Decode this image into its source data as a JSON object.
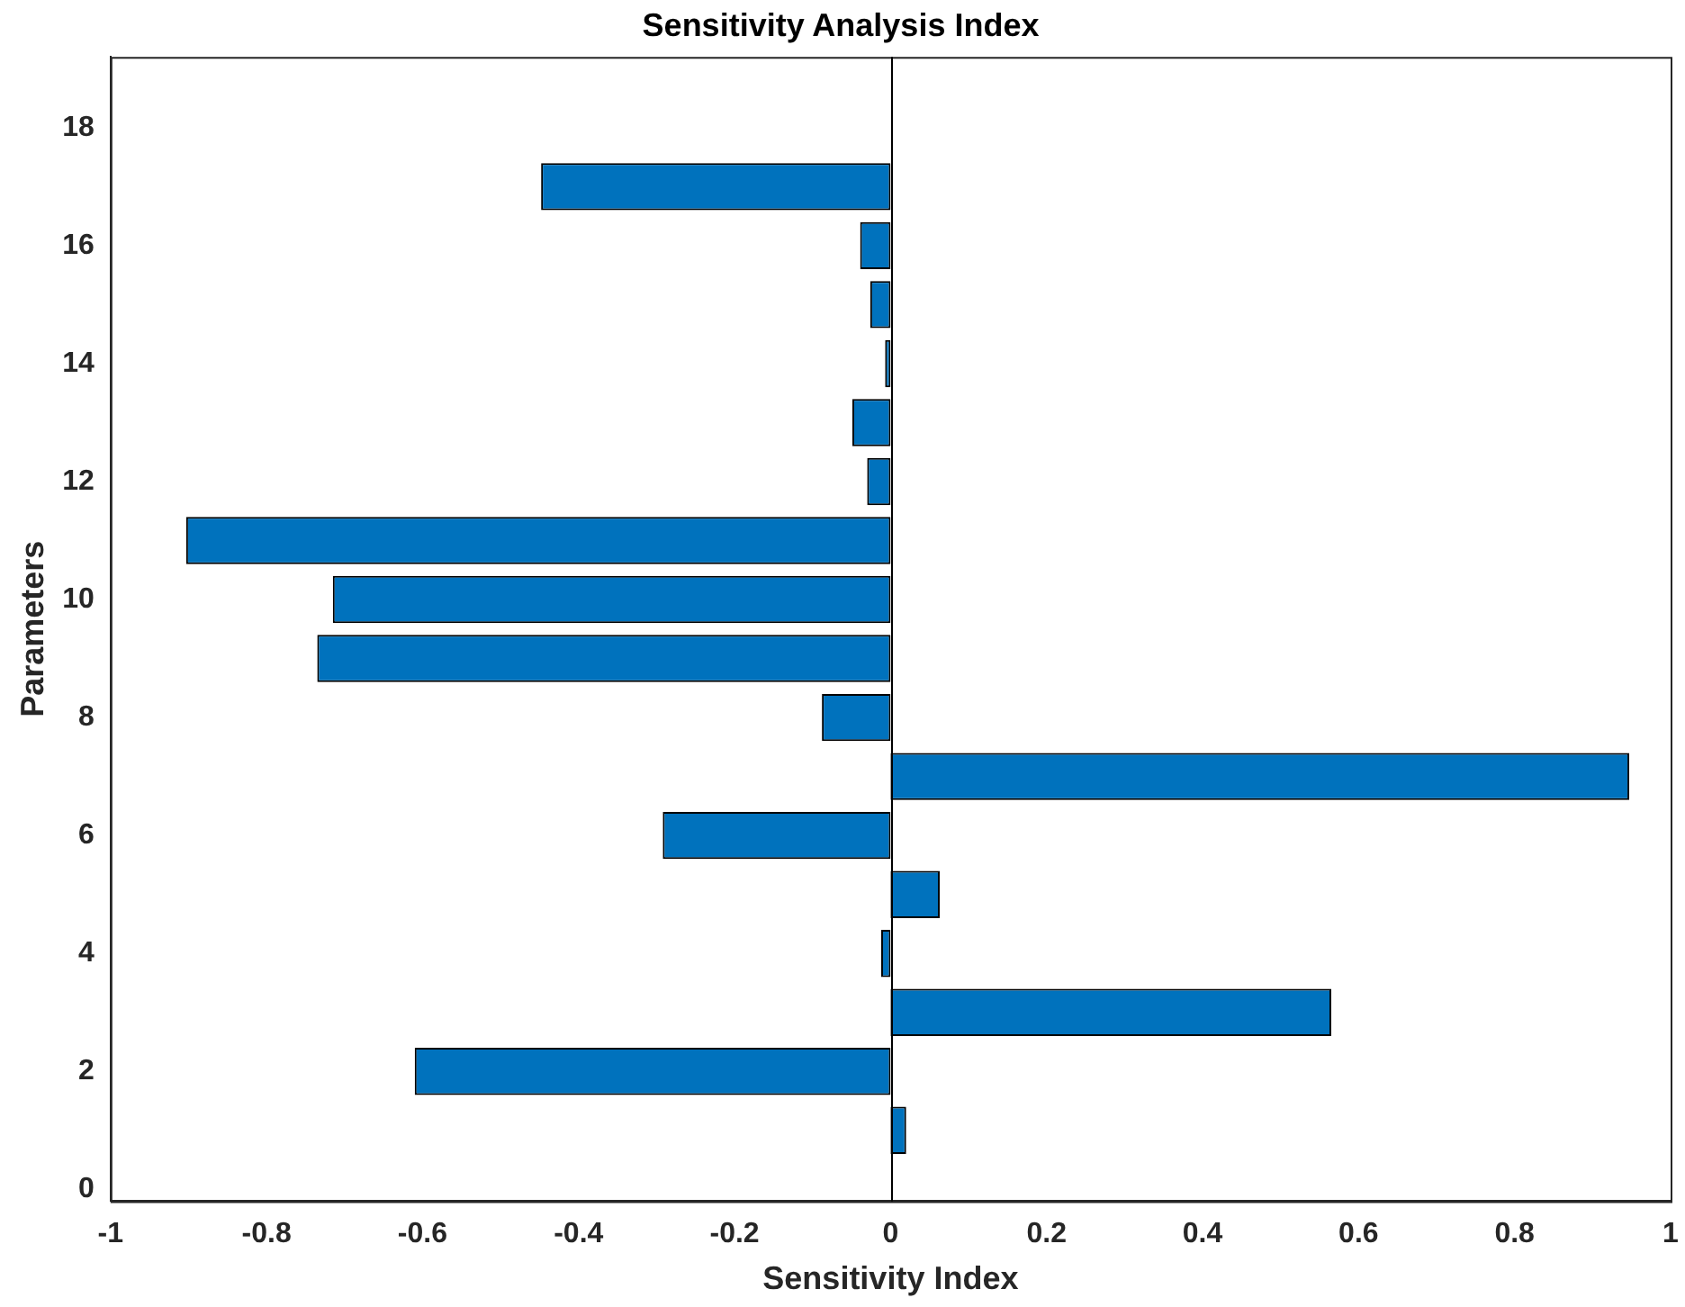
{
  "chart_data": {
    "type": "bar",
    "orientation": "horizontal",
    "title": "Sensitivity Analysis Index",
    "xlabel": "Sensitivity Index",
    "ylabel": "Parameters",
    "x": [
      1,
      2,
      3,
      4,
      5,
      6,
      7,
      8,
      9,
      10,
      11,
      12,
      13,
      14,
      15,
      16,
      17
    ],
    "values": [
      0.02,
      -0.61,
      0.565,
      -0.012,
      0.063,
      -0.292,
      0.947,
      -0.088,
      -0.735,
      -0.715,
      -0.903,
      -0.03,
      -0.049,
      -0.007,
      -0.026,
      -0.039,
      -0.448
    ],
    "color": "#0072bd",
    "xlim": [
      -1,
      1
    ],
    "xticks": [
      -1,
      -0.8,
      -0.6,
      -0.4,
      -0.2,
      0,
      0.2,
      0.4,
      0.6,
      0.8,
      1
    ],
    "ylim": [
      -0.2,
      19.2
    ],
    "yticks": [
      0,
      2,
      4,
      6,
      8,
      10,
      12,
      14,
      16,
      18
    ],
    "ref_lines": [
      {
        "axis": "x",
        "value": 0,
        "color": "#000000"
      }
    ],
    "grid": false,
    "legend": false
  }
}
